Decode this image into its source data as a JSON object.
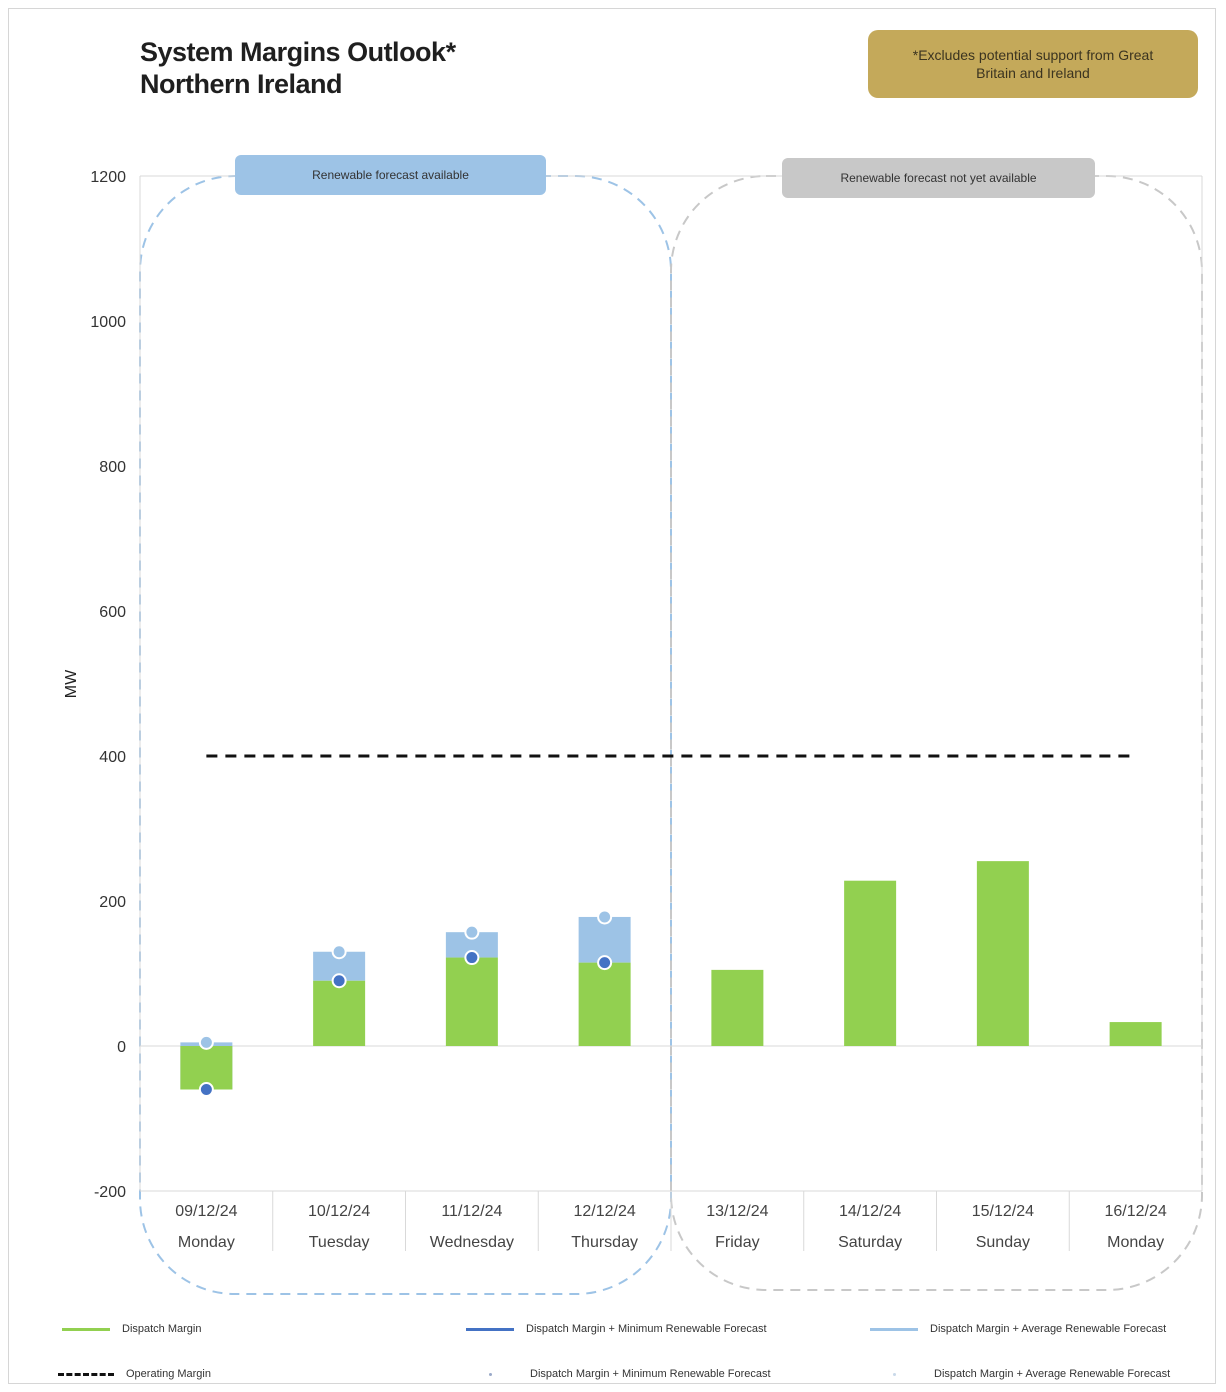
{
  "header": {
    "title_line1": "System Margins Outlook*",
    "title_line2": "Northern Ireland",
    "note": "*Excludes potential support from Great Britain and Ireland"
  },
  "regions": [
    {
      "label": "Renewable forecast available",
      "color": "#9dc3e6"
    },
    {
      "label": "Renewable forecast not yet available",
      "color": "#c8c8c8"
    }
  ],
  "colors": {
    "dispatch": "#92d050",
    "min_renewable": "#4472c4",
    "avg_renewable": "#9dc3e6",
    "operating": "#111111",
    "axis": "#d9d9d9"
  },
  "legend": {
    "dispatch": "Dispatch Margin",
    "min_line": "Dispatch Margin + Minimum Renewable Forecast",
    "avg_line": "Dispatch Margin + Average Renewable Forecast",
    "operating": "Operating Margin",
    "min_marker": "Dispatch Margin + Minimum Renewable Forecast",
    "avg_marker": "Dispatch Margin + Average Renewable Forecast"
  },
  "chart_data": {
    "type": "bar",
    "ylabel": "MW",
    "ylim": [
      -200,
      1200
    ],
    "yticks": [
      -200,
      0,
      200,
      400,
      600,
      800,
      1000,
      1200
    ],
    "categories": [
      {
        "date": "09/12/24",
        "day": "Monday"
      },
      {
        "date": "10/12/24",
        "day": "Tuesday"
      },
      {
        "date": "11/12/24",
        "day": "Wednesday"
      },
      {
        "date": "12/12/24",
        "day": "Thursday"
      },
      {
        "date": "13/12/24",
        "day": "Friday"
      },
      {
        "date": "14/12/24",
        "day": "Saturday"
      },
      {
        "date": "15/12/24",
        "day": "Sunday"
      },
      {
        "date": "16/12/24",
        "day": "Monday"
      }
    ],
    "series": [
      {
        "name": "Dispatch Margin",
        "values": [
          -60,
          90,
          122,
          115,
          105,
          228,
          255,
          33
        ]
      },
      {
        "name": "Dispatch Margin + Minimum Renewable Forecast",
        "values": [
          -60,
          90,
          122,
          115,
          null,
          null,
          null,
          null
        ]
      },
      {
        "name": "Dispatch Margin + Average Renewable Forecast",
        "values": [
          5,
          130,
          157,
          178,
          null,
          null,
          null,
          null
        ]
      },
      {
        "name": "Operating Margin",
        "values": [
          400,
          400,
          400,
          400,
          400,
          400,
          400,
          400
        ]
      }
    ],
    "grid": false
  }
}
